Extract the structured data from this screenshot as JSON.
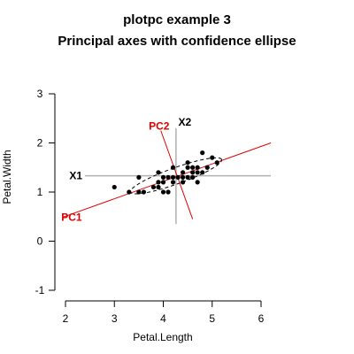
{
  "chart_data": {
    "type": "scatter",
    "title": "plotpc example 3",
    "subtitle": "Principal axes with confidence ellipse",
    "xlabel": "Petal.Length",
    "ylabel": "Petal.Width",
    "xlim": [
      1.95,
      6.2
    ],
    "ylim": [
      -1,
      3
    ],
    "x_ticks": [
      2,
      3,
      4,
      5,
      6
    ],
    "y_ticks": [
      -1,
      0,
      1,
      2,
      3
    ],
    "colors": {
      "points": "#000000",
      "original_axes": "#b0b0b0",
      "principal_axes": "#e00000",
      "ellipse": "#000000"
    },
    "points": [
      {
        "x": 3.0,
        "y": 1.1
      },
      {
        "x": 3.3,
        "y": 1.0
      },
      {
        "x": 3.5,
        "y": 1.0
      },
      {
        "x": 3.5,
        "y": 1.3
      },
      {
        "x": 3.6,
        "y": 1.0
      },
      {
        "x": 3.8,
        "y": 1.1
      },
      {
        "x": 3.9,
        "y": 1.1
      },
      {
        "x": 3.9,
        "y": 1.2
      },
      {
        "x": 3.9,
        "y": 1.4
      },
      {
        "x": 4.0,
        "y": 1.0
      },
      {
        "x": 4.0,
        "y": 1.2
      },
      {
        "x": 4.0,
        "y": 1.3
      },
      {
        "x": 4.1,
        "y": 1.0
      },
      {
        "x": 4.1,
        "y": 1.3
      },
      {
        "x": 4.2,
        "y": 1.2
      },
      {
        "x": 4.2,
        "y": 1.3
      },
      {
        "x": 4.2,
        "y": 1.5
      },
      {
        "x": 4.3,
        "y": 1.3
      },
      {
        "x": 4.4,
        "y": 1.2
      },
      {
        "x": 4.4,
        "y": 1.3
      },
      {
        "x": 4.4,
        "y": 1.4
      },
      {
        "x": 4.5,
        "y": 1.3
      },
      {
        "x": 4.5,
        "y": 1.5
      },
      {
        "x": 4.5,
        "y": 1.6
      },
      {
        "x": 4.6,
        "y": 1.3
      },
      {
        "x": 4.6,
        "y": 1.4
      },
      {
        "x": 4.6,
        "y": 1.5
      },
      {
        "x": 4.7,
        "y": 1.2
      },
      {
        "x": 4.7,
        "y": 1.4
      },
      {
        "x": 4.7,
        "y": 1.5
      },
      {
        "x": 4.8,
        "y": 1.4
      },
      {
        "x": 4.8,
        "y": 1.8
      },
      {
        "x": 4.9,
        "y": 1.5
      },
      {
        "x": 5.0,
        "y": 1.7
      },
      {
        "x": 5.1,
        "y": 1.6
      }
    ],
    "center": {
      "x": 4.26,
      "y": 1.33
    },
    "original_axes": [
      {
        "label": "X1",
        "axis": "horizontal",
        "from": 2.4,
        "to": 6.2
      },
      {
        "label": "X2",
        "axis": "vertical",
        "from": 0.35,
        "to": 2.3
      }
    ],
    "principal_axes": [
      {
        "label": "PC1",
        "from": {
          "x": 1.95,
          "y": 0.49
        },
        "to": {
          "x": 6.2,
          "y": 2.0
        }
      },
      {
        "label": "PC2",
        "from": {
          "x": 3.95,
          "y": 2.25
        },
        "to": {
          "x": 4.6,
          "y": 0.45
        }
      }
    ],
    "ellipse": {
      "angle_deg": 19.6,
      "semi_major": 0.99,
      "semi_minor": 0.165
    }
  }
}
